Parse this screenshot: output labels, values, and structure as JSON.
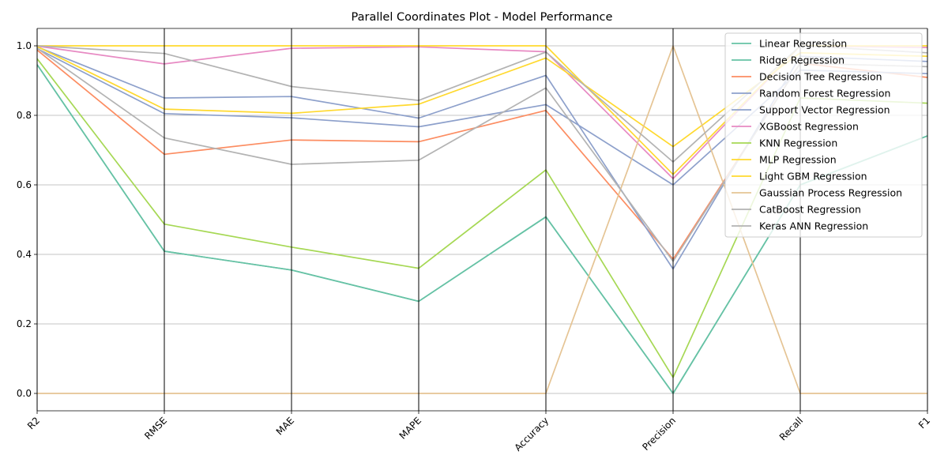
{
  "chart_data": {
    "type": "line",
    "title": "Parallel Coordinates Plot - Model Performance",
    "categories": [
      "R2",
      "RMSE",
      "MAE",
      "MAPE",
      "Accuracy",
      "Precision",
      "Recall",
      "F1"
    ],
    "ylim": [
      -0.05,
      1.05
    ],
    "yticks": [
      "0.0",
      "0.2",
      "0.4",
      "0.6",
      "0.8",
      "1.0"
    ],
    "grid": true,
    "legend_position": "top-right",
    "series": [
      {
        "name": "Linear Regression",
        "color": "#66c2a5",
        "values": [
          0.946,
          0.409,
          0.355,
          0.265,
          0.508,
          0.0,
          0.6,
          0.741
        ]
      },
      {
        "name": "Ridge Regression",
        "color": "#66c2a5",
        "values": [
          0.946,
          0.409,
          0.355,
          0.265,
          0.508,
          0.0,
          0.6,
          0.741
        ]
      },
      {
        "name": "Decision Tree Regression",
        "color": "#fc8d62",
        "values": [
          0.988,
          0.688,
          0.729,
          0.724,
          0.814,
          0.386,
          0.95,
          0.909
        ]
      },
      {
        "name": "Random Forest Regression",
        "color": "#8da0cb",
        "values": [
          0.997,
          0.85,
          0.854,
          0.792,
          0.915,
          0.358,
          0.97,
          0.955
        ]
      },
      {
        "name": "Support Vector Regression",
        "color": "#8da0cb",
        "values": [
          0.992,
          0.805,
          0.793,
          0.767,
          0.831,
          0.6,
          0.93,
          0.92
        ]
      },
      {
        "name": "XGBoost Regression",
        "color": "#e78ac3",
        "values": [
          0.999,
          0.948,
          0.993,
          0.997,
          0.983,
          0.618,
          1.0,
          0.995
        ]
      },
      {
        "name": "KNN Regression",
        "color": "#a6d854",
        "values": [
          0.963,
          0.487,
          0.421,
          0.36,
          0.643,
          0.046,
          0.85,
          0.835
        ]
      },
      {
        "name": "MLP Regression",
        "color": "#ffd92f",
        "values": [
          0.998,
          0.818,
          0.806,
          0.832,
          0.965,
          0.71,
          0.98,
          0.97
        ]
      },
      {
        "name": "Light GBM Regression",
        "color": "#ffd92f",
        "values": [
          1.0,
          1.0,
          1.0,
          1.0,
          1.0,
          0.63,
          1.0,
          1.0
        ]
      },
      {
        "name": "Gaussian Process Regression",
        "color": "#e5c494",
        "values": [
          0.0,
          0.0,
          0.0,
          0.0,
          0.0,
          1.0,
          0.0,
          0.0
        ]
      },
      {
        "name": "CatBoost Regression",
        "color": "#b3b3b3",
        "values": [
          1.0,
          0.978,
          0.883,
          0.843,
          0.982,
          0.666,
          1.0,
          0.98
        ]
      },
      {
        "name": "Keras ANN Regression",
        "color": "#b3b3b3",
        "values": [
          0.993,
          0.735,
          0.659,
          0.671,
          0.879,
          0.38,
          0.95,
          0.94
        ]
      }
    ]
  }
}
